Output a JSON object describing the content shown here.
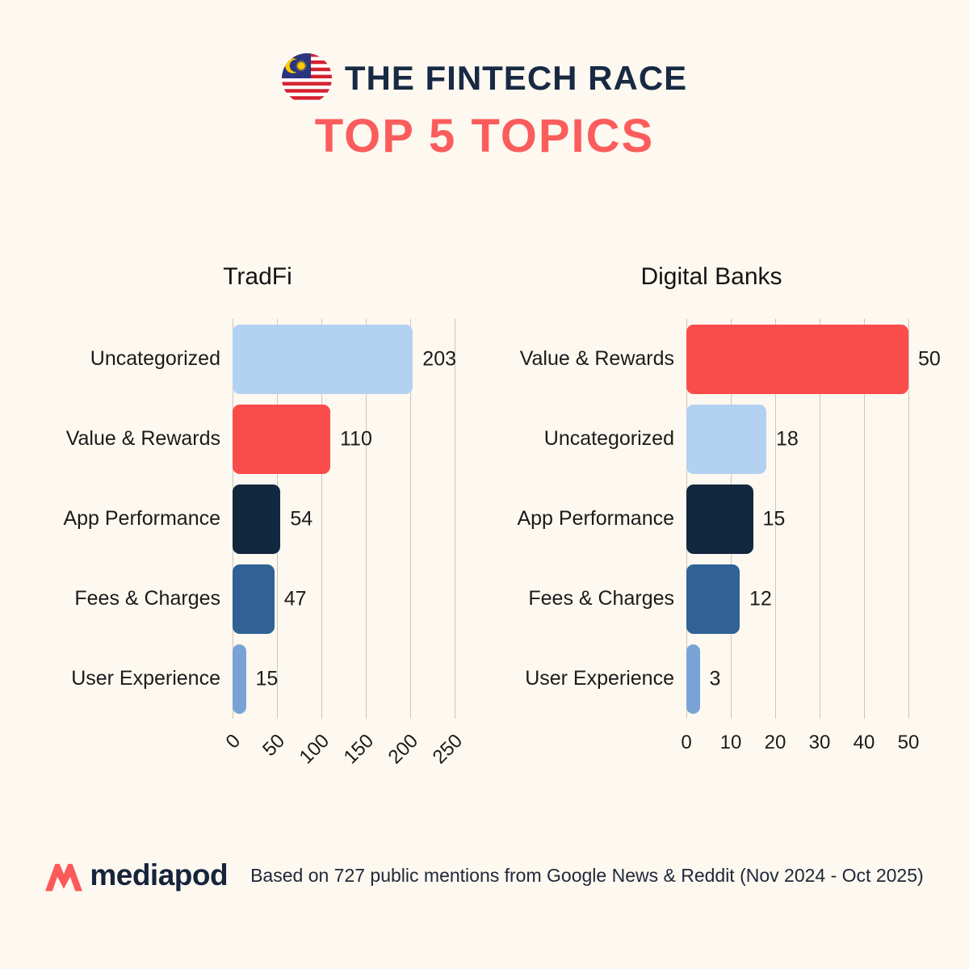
{
  "header": {
    "flag": "malaysia-flag",
    "title": "THE FINTECH RACE",
    "subtitle": "TOP 5 TOPICS"
  },
  "colors": {
    "background": "#fdf8f0",
    "title_navy": "#182a43",
    "accent_red": "#fb5c5c",
    "grid_line": "#cac7c0",
    "text_dark": "#1b1b1b"
  },
  "chart_data": [
    {
      "type": "bar",
      "orientation": "horizontal",
      "title": "TradFi",
      "categories": [
        "Uncategorized",
        "Value & Rewards",
        "App Performance",
        "Fees & Charges",
        "User Experience"
      ],
      "values": [
        203,
        110,
        54,
        47,
        15
      ],
      "bar_colors": [
        "#b3d2f1",
        "#fb4c4c",
        "#12283f",
        "#306295",
        "#79a3d6"
      ],
      "xlabel": "",
      "ylabel": "",
      "xlim": [
        0,
        250
      ],
      "xticks": [
        0,
        50,
        100,
        150,
        200,
        250
      ],
      "xtick_rotation": -45,
      "grid": true,
      "legend": false,
      "value_labels": true
    },
    {
      "type": "bar",
      "orientation": "horizontal",
      "title": "Digital Banks",
      "categories": [
        "Value & Rewards",
        "Uncategorized",
        "App Performance",
        "Fees & Charges",
        "User Experience"
      ],
      "values": [
        50,
        18,
        15,
        12,
        3
      ],
      "bar_colors": [
        "#fb4c4c",
        "#b3d2f1",
        "#12283f",
        "#306295",
        "#79a3d6"
      ],
      "xlabel": "",
      "ylabel": "",
      "xlim": [
        0,
        50
      ],
      "xticks": [
        0,
        10,
        20,
        30,
        40,
        50
      ],
      "xtick_rotation": 0,
      "grid": true,
      "legend": false,
      "value_labels": true
    }
  ],
  "footer": {
    "brand": "mediapod",
    "note": "Based on 727 public mentions from Google News & Reddit (Nov 2024 - Oct 2025)"
  }
}
